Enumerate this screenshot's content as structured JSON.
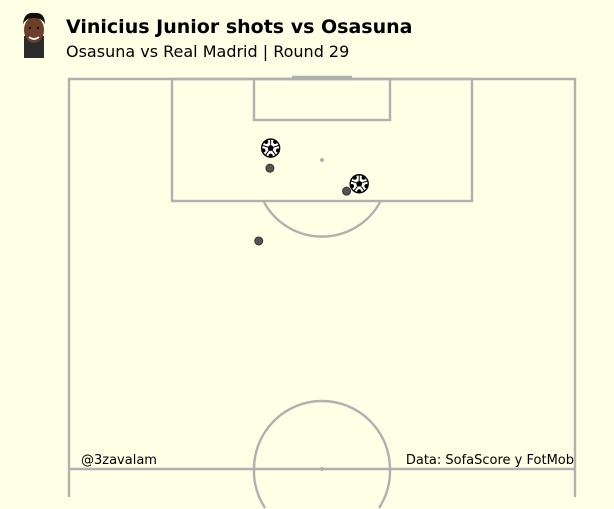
{
  "header": {
    "title": "Vinicius Junior shots vs Osasuna",
    "subtitle": "Osasuna vs Real Madrid | Round 29"
  },
  "footer": {
    "credit_left": "@3zavalam",
    "credit_right": "Data: SofaScore y FotMob"
  },
  "colors": {
    "background": "#ffffe6",
    "lines": "#b0b0b0",
    "shot_miss": "#555555",
    "goal_marker": "#000000"
  },
  "chart_data": {
    "type": "scatter",
    "pitch": "half-vertical",
    "pitch_dimensions_m": [
      105,
      68
    ],
    "series": [
      {
        "outcome": "goal",
        "icon": "football-icon",
        "points": [
          [
            95.7,
            27.1
          ],
          [
            90.9,
            39.0
          ]
        ]
      },
      {
        "outcome": "miss",
        "icon": "dot",
        "points": [
          [
            93.0,
            27.0
          ],
          [
            89.9,
            37.3
          ],
          [
            83.2,
            25.5
          ]
        ]
      }
    ]
  }
}
